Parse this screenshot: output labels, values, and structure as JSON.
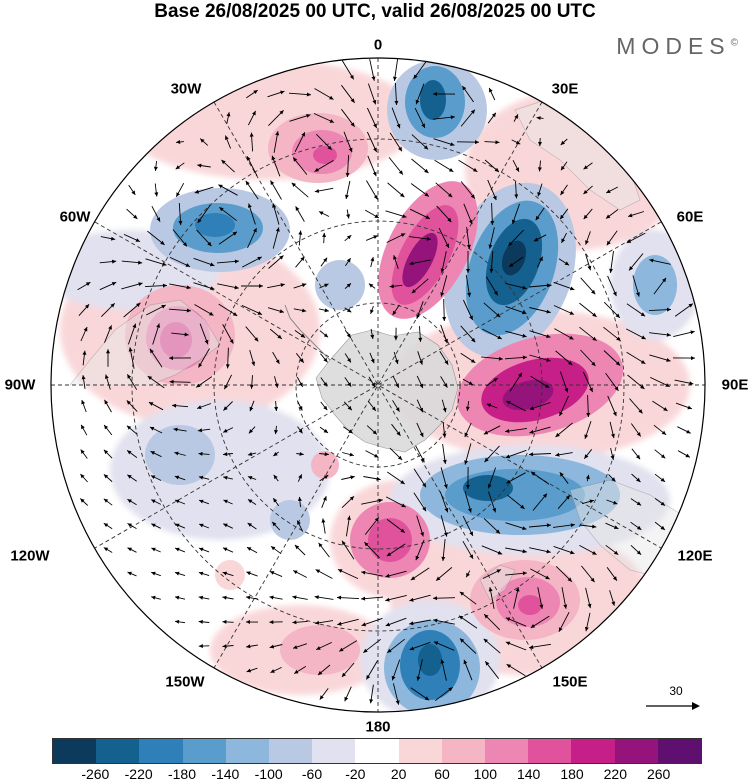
{
  "title": "Base 26/08/2025 00 UTC, valid 26/08/2025 00 UTC",
  "brand": "MODES",
  "brand_mark": "©",
  "labels": {
    "north": "0",
    "nnw": "30W",
    "nne": "30E",
    "wnw": "60W",
    "ene": "60E",
    "west": "90W",
    "east": "90E",
    "wsw": "120W",
    "ese": "120E",
    "ssw": "150W",
    "sse": "150E",
    "south": "180"
  },
  "reference_vector": "30",
  "colorbar": {
    "colors": [
      "#0b3a5c",
      "#14608f",
      "#2f80b8",
      "#5a9ccb",
      "#8db7dc",
      "#bac9e3",
      "#e1e1ef",
      "#ffffff",
      "#f9d7d9",
      "#f4b5c5",
      "#ee86b3",
      "#e1529c",
      "#c61f87",
      "#94147c",
      "#5e0f6f"
    ],
    "ticks": [
      "-260",
      "-220",
      "-180",
      "-140",
      "-100",
      "-60",
      "-20",
      "20",
      "60",
      "100",
      "140",
      "180",
      "220",
      "260"
    ]
  }
}
